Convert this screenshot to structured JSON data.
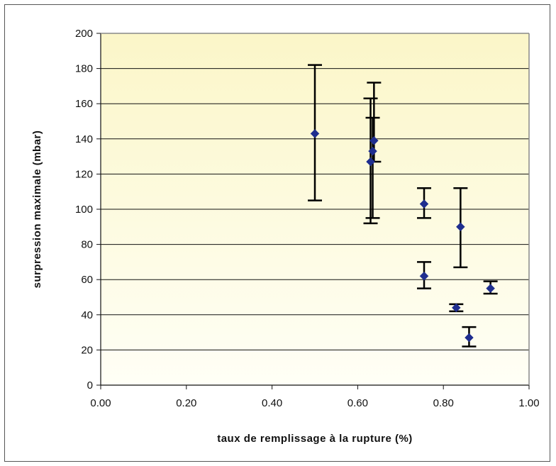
{
  "chart_data": {
    "type": "scatter",
    "xlabel": "taux de remplissage à la rupture (%)",
    "ylabel": "surpression maximale (mbar)",
    "xlim": [
      0,
      1
    ],
    "ylim": [
      0,
      200
    ],
    "x_ticks": [
      "0.00",
      "0.20",
      "0.40",
      "0.60",
      "0.80",
      "1.00"
    ],
    "y_ticks": [
      "0",
      "20",
      "40",
      "60",
      "80",
      "100",
      "120",
      "140",
      "160",
      "180",
      "200"
    ],
    "grid": "horizontal",
    "background_gradient": [
      "#fbf6c8",
      "#fffff6"
    ],
    "marker_color": "#1f2e8f",
    "errorbar_color": "#000000",
    "points": [
      {
        "x": 0.5,
        "y": 143,
        "y_low": 105,
        "y_high": 182
      },
      {
        "x": 0.63,
        "y": 127,
        "y_low": 92,
        "y_high": 163
      },
      {
        "x": 0.635,
        "y": 133,
        "y_low": 95,
        "y_high": 152
      },
      {
        "x": 0.638,
        "y": 139,
        "y_low": 127,
        "y_high": 172
      },
      {
        "x": 0.755,
        "y": 103,
        "y_low": 95,
        "y_high": 112
      },
      {
        "x": 0.755,
        "y": 62,
        "y_low": 55,
        "y_high": 70
      },
      {
        "x": 0.84,
        "y": 90,
        "y_low": 67,
        "y_high": 112
      },
      {
        "x": 0.83,
        "y": 44,
        "y_low": 42,
        "y_high": 46
      },
      {
        "x": 0.86,
        "y": 27,
        "y_low": 22,
        "y_high": 33
      },
      {
        "x": 0.91,
        "y": 55,
        "y_low": 52,
        "y_high": 59
      }
    ]
  }
}
